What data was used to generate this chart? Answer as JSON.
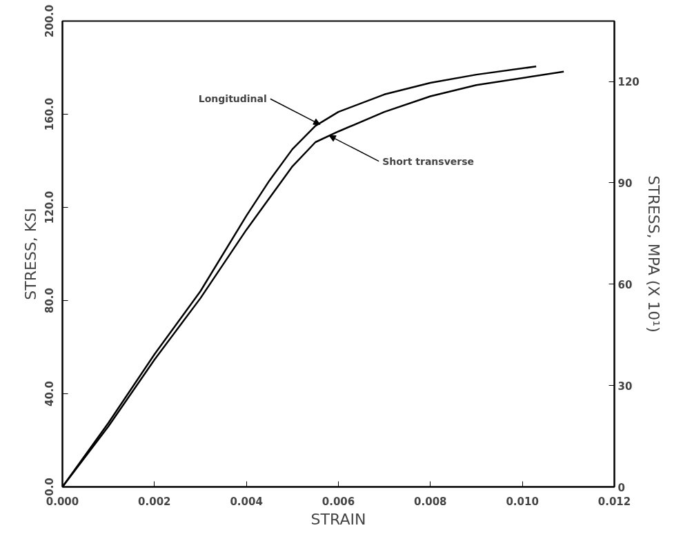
{
  "chart_data": {
    "type": "line",
    "xlabel": "STRAIN",
    "ylabel": "STRESS, KSI",
    "y2label": "STRESS, MPA (X 10¹)",
    "xlim": [
      0,
      0.012
    ],
    "ylim": [
      0,
      200
    ],
    "y2lim": [
      0,
      137.9
    ],
    "xticks": [
      {
        "value": 0,
        "label": "0.000"
      },
      {
        "value": 0.002,
        "label": "0.002"
      },
      {
        "value": 0.004,
        "label": "0.004"
      },
      {
        "value": 0.006,
        "label": "0.006"
      },
      {
        "value": 0.008,
        "label": "0.008"
      },
      {
        "value": 0.01,
        "label": "0.010"
      },
      {
        "value": 0.012,
        "label": "0.012"
      }
    ],
    "yticks": [
      {
        "value": 0,
        "label": "0.0"
      },
      {
        "value": 40,
        "label": "40.0"
      },
      {
        "value": 80,
        "label": "80.0"
      },
      {
        "value": 120,
        "label": "120.0"
      },
      {
        "value": 160,
        "label": "160.0"
      },
      {
        "value": 200,
        "label": "200.0"
      }
    ],
    "y2ticks": [
      0,
      30,
      60,
      90,
      120
    ],
    "grid": false,
    "marker": "none",
    "line_style": "solid",
    "series": [
      {
        "color": "#000000",
        "x": [
          0,
          0.001,
          0.002,
          0.003,
          0.004,
          0.0045,
          0.005,
          0.0055,
          0.006,
          0.007,
          0.008,
          0.009,
          0.0103
        ],
        "values": [
          0,
          27.5,
          56.9,
          84,
          116.4,
          131.5,
          145,
          155,
          161,
          168.5,
          173.5,
          177,
          180.5
        ]
      },
      {
        "color": "#000000",
        "x": [
          0,
          0.001,
          0.002,
          0.003,
          0.004,
          0.0045,
          0.005,
          0.0055,
          0.006,
          0.007,
          0.008,
          0.009,
          0.0109
        ],
        "values": [
          0,
          26,
          54.6,
          81,
          110.4,
          124,
          137.6,
          148,
          152.6,
          161,
          167.7,
          172.5,
          178.3
        ]
      }
    ],
    "annotations": [
      {
        "text": "Longitudinal",
        "x": 0.0056,
        "y": 155.6
      },
      {
        "text": "Short transverse",
        "x": 0.0058,
        "y": 150.8
      }
    ]
  }
}
